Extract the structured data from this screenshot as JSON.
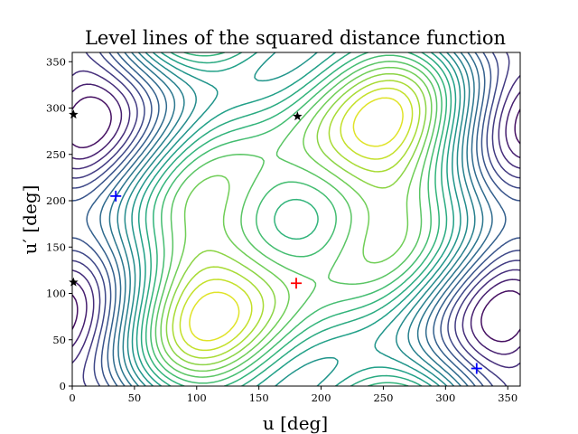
{
  "chart_data": {
    "type": "contour",
    "title": "Level lines of the squared distance function",
    "xlabel": "u [deg]",
    "ylabel": "u′ [deg]",
    "xlim": [
      0,
      360
    ],
    "ylim": [
      0,
      360
    ],
    "xticks": [
      0,
      50,
      100,
      150,
      200,
      250,
      300,
      350
    ],
    "yticks": [
      0,
      50,
      100,
      150,
      200,
      250,
      300,
      350
    ],
    "colormap": "viridis",
    "grid": false,
    "maximum": {
      "u": 180,
      "u_prime": 111,
      "marker": "+",
      "color": "#ff0000"
    },
    "minima": [
      {
        "u": 35,
        "u_prime": 205,
        "marker": "+",
        "color": "#0000ff"
      },
      {
        "u": 325,
        "u_prime": 19,
        "marker": "+",
        "color": "#0000ff"
      }
    ],
    "saddles": [
      {
        "u": 181,
        "u_prime": 291,
        "marker": "*",
        "color": "#000000"
      },
      {
        "u": 1,
        "u_prime": 293,
        "marker": "*",
        "color": "#000000"
      },
      {
        "u": 1,
        "u_prime": 112,
        "marker": "*",
        "color": "#000000"
      }
    ]
  }
}
